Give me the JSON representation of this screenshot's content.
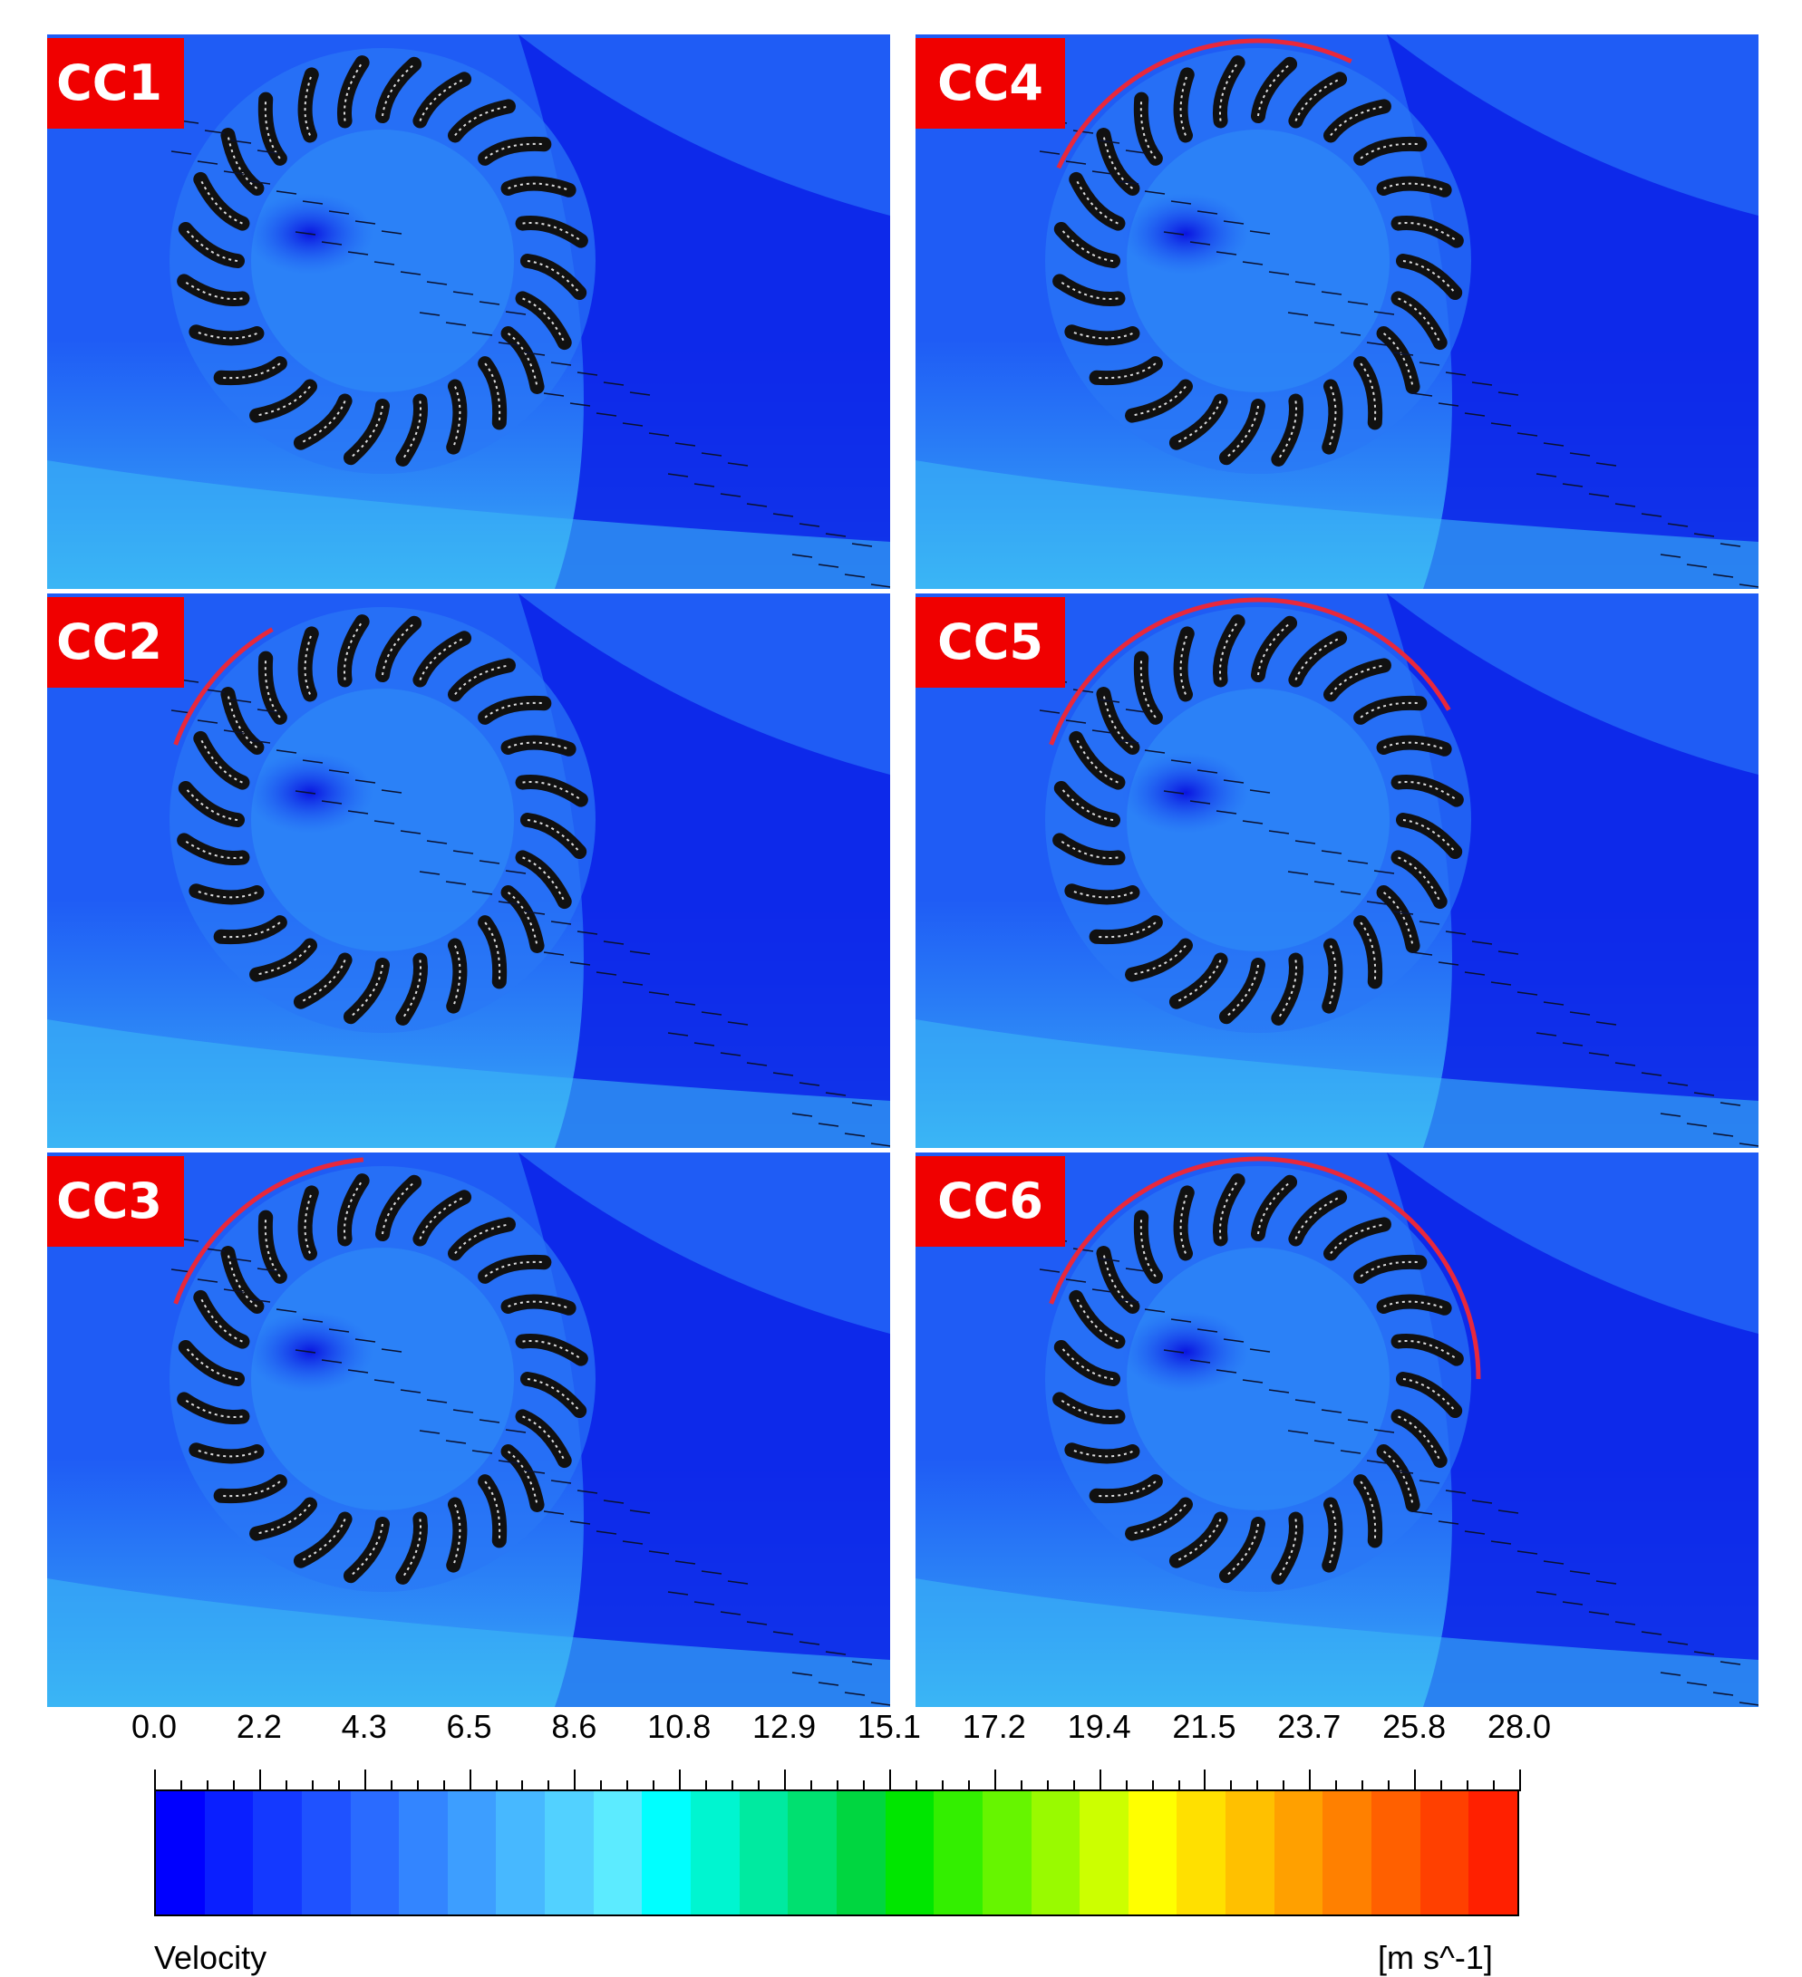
{
  "panels": [
    {
      "label": "CC1",
      "shroud_arc": null
    },
    {
      "label": "CC4",
      "shroud_arc": [
        205,
        295
      ]
    },
    {
      "label": "CC2",
      "shroud_arc": [
        200,
        240
      ]
    },
    {
      "label": "CC5",
      "shroud_arc": [
        200,
        330
      ]
    },
    {
      "label": "CC3",
      "shroud_arc": [
        200,
        265
      ]
    },
    {
      "label": "CC6",
      "shroud_arc": [
        200,
        360
      ]
    }
  ],
  "legend": {
    "ticks": [
      "0.0",
      "2.2",
      "4.3",
      "6.5",
      "8.6",
      "10.8",
      "12.9",
      "15.1",
      "17.2",
      "19.4",
      "21.5",
      "23.7",
      "25.8",
      "28.0"
    ],
    "title": "Velocity",
    "unit": "[m s^-1]",
    "colors": [
      "#0000ff",
      "#0a1fff",
      "#1439ff",
      "#1f52ff",
      "#2a6bff",
      "#3385ff",
      "#3d9eff",
      "#47b8ff",
      "#52d1ff",
      "#5cebff",
      "#00ffff",
      "#00f5d0",
      "#00eaa0",
      "#00e070",
      "#00d640",
      "#00e600",
      "#33ef00",
      "#66f500",
      "#99fa00",
      "#ccff00",
      "#ffff00",
      "#ffe000",
      "#ffc000",
      "#ffa000",
      "#ff8000",
      "#ff6000",
      "#ff4000",
      "#ff2000"
    ],
    "ink": "#000000"
  },
  "colors": {
    "tag_bg": "#f00000",
    "shroud": "#e8283c",
    "field_dark": "#0a20e8",
    "field_mid": "#1f5cf5",
    "field_light": "#3bb5f5",
    "blade": "#111111"
  }
}
